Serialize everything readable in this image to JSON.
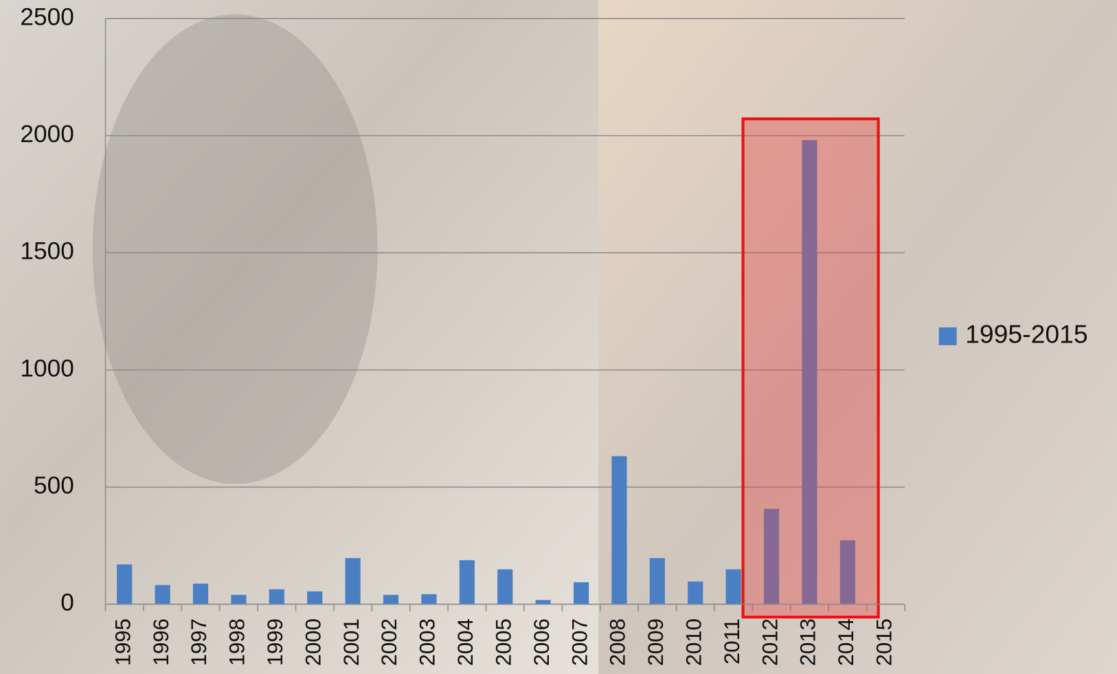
{
  "chart_data": {
    "type": "bar",
    "categories": [
      "1995",
      "1996",
      "1997",
      "1998",
      "1999",
      "2000",
      "2001",
      "2002",
      "2003",
      "2004",
      "2005",
      "2006",
      "2007",
      "2008",
      "2009",
      "2010",
      "2011",
      "2012",
      "2013",
      "2014",
      "2015"
    ],
    "series": [
      {
        "name": "1995-2015",
        "color": "#4a7fc4",
        "values": [
          170,
          82,
          88,
          40,
          64,
          55,
          197,
          40,
          43,
          188,
          149,
          18,
          94,
          632,
          197,
          97,
          149,
          407,
          1981,
          273,
          null
        ]
      }
    ],
    "ylim": [
      0,
      2500
    ],
    "yticks": [
      0,
      500,
      1000,
      1500,
      2000,
      2500
    ],
    "grid": true,
    "legend": "right"
  }
}
